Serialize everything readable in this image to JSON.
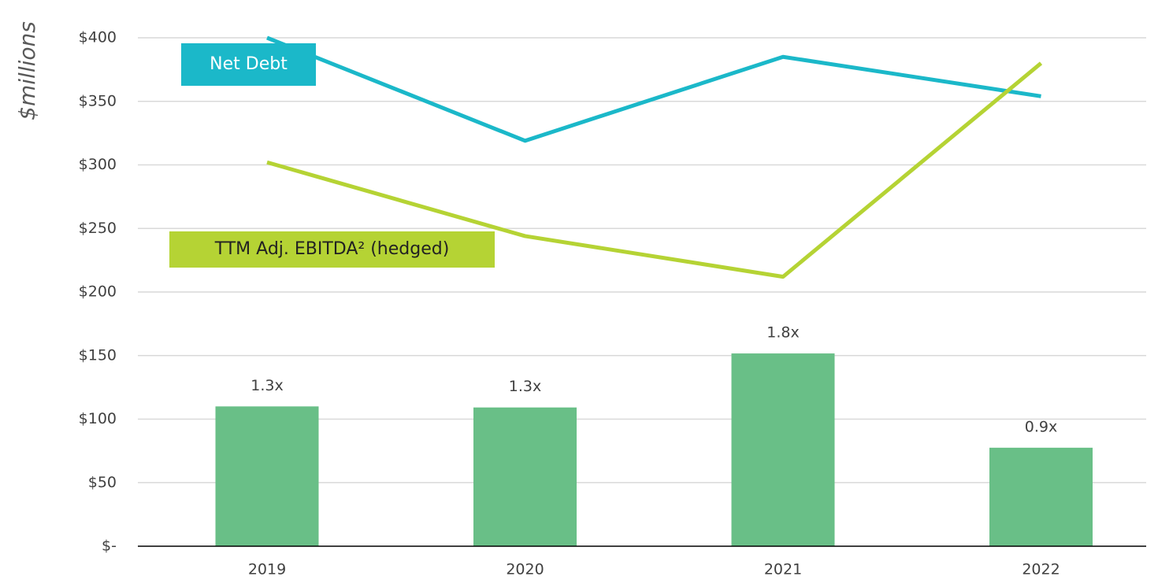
{
  "chart_data": {
    "type": "bar_line",
    "y_label": "$millions",
    "categories": [
      "2019",
      "2020",
      "2021",
      "2022"
    ],
    "ylim": [
      0,
      400
    ],
    "yticks": [
      {
        "value": 0,
        "label": "$-"
      },
      {
        "value": 50,
        "label": "$50"
      },
      {
        "value": 100,
        "label": "$100"
      },
      {
        "value": 150,
        "label": "$150"
      },
      {
        "value": 200,
        "label": "$200"
      },
      {
        "value": 250,
        "label": "$250"
      },
      {
        "value": 300,
        "label": "$300"
      },
      {
        "value": 350,
        "label": "$350"
      },
      {
        "value": 400,
        "label": "$400"
      }
    ],
    "y2lim": [
      0,
      4.8
    ],
    "grid": true,
    "bars": {
      "color": "#69bf87",
      "axis": "y2",
      "values": [
        1.32,
        1.31,
        1.82,
        0.93
      ],
      "value_labels": [
        "1.3x",
        "1.3x",
        "1.8x",
        "0.9x"
      ]
    },
    "series": [
      {
        "name": "Net Debt",
        "color": "#1bb8c9",
        "values": [
          400,
          319,
          385,
          354
        ]
      },
      {
        "name": "TTM Adj. EBITDA² (hedged)",
        "color": "#b5d334",
        "values": [
          302,
          244,
          212,
          380
        ]
      }
    ]
  }
}
